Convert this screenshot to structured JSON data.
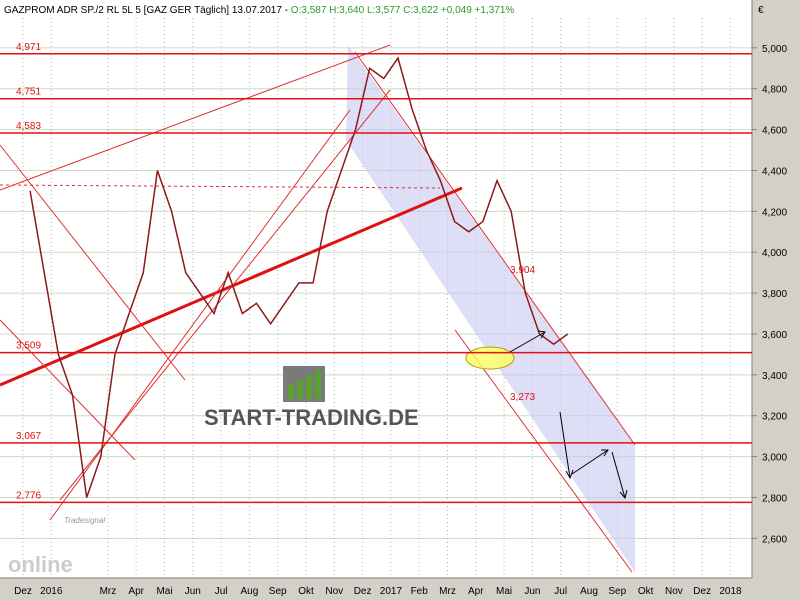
{
  "chart_data": {
    "type": "line",
    "title": "GAZPROM ADR SP./2 RL 5L 5 [GAZ GER  Täglich] 13.07.2017 -",
    "quote": "O:3,587 H:3,640 L:3,577 C:3,622 +0,049 +1,371%",
    "currency": "€",
    "categories": [
      "Dez",
      null,
      "2016",
      null,
      null,
      null,
      "Mrz",
      null,
      "Apr",
      null,
      "Mai",
      null,
      "Jun",
      null,
      "Jul",
      null,
      "Aug",
      null,
      "Sep",
      null,
      "Okt",
      null,
      "Nov",
      null,
      "Dez",
      null,
      "2017",
      null,
      "Feb",
      null,
      "Mrz",
      null,
      "Apr",
      null,
      "Mai",
      null,
      "Jun",
      null,
      "Jul",
      null,
      "Aug",
      null,
      "Sep",
      null,
      "Okt",
      null,
      "Nov",
      null,
      "Dez",
      null,
      "2018",
      null
    ],
    "series": [
      {
        "name": "GAZPROM ADR",
        "color": "#8b1a1a",
        "values": [
          4.3,
          3.9,
          3.5,
          3.3,
          2.8,
          3.0,
          3.5,
          3.7,
          3.9,
          4.4,
          4.2,
          3.9,
          3.8,
          3.7,
          3.9,
          3.7,
          3.75,
          3.65,
          3.75,
          3.85,
          3.85,
          4.2,
          4.4,
          4.6,
          4.9,
          4.85,
          4.95,
          4.7,
          4.5,
          4.35,
          4.15,
          4.1,
          4.15,
          4.35,
          4.2,
          3.8,
          3.6,
          3.55,
          3.6,
          null,
          null,
          null,
          null,
          null,
          null,
          null,
          null,
          null,
          null,
          null,
          null,
          null
        ]
      }
    ],
    "ylim": [
      2.406,
      5.234
    ],
    "yticks": [
      {
        "value": 2.6,
        "label": "2,600"
      },
      {
        "value": 2.8,
        "label": "2,800"
      },
      {
        "value": 3.0,
        "label": "3,000"
      },
      {
        "value": 3.2,
        "label": "3,200"
      },
      {
        "value": 3.4,
        "label": "3,400"
      },
      {
        "value": 3.6,
        "label": "3,600"
      },
      {
        "value": 3.8,
        "label": "3,800"
      },
      {
        "value": 4.0,
        "label": "4,000"
      },
      {
        "value": 4.2,
        "label": "4,200"
      },
      {
        "value": 4.4,
        "label": "4,400"
      },
      {
        "value": 4.6,
        "label": "4,600"
      },
      {
        "value": 4.8,
        "label": "4,800"
      },
      {
        "value": 5.0,
        "label": "5,000"
      }
    ],
    "grid": true,
    "levels": [
      {
        "value": 4.971,
        "label": "4,971"
      },
      {
        "value": 4.751,
        "label": "4,751"
      },
      {
        "value": 4.583,
        "label": "4,583"
      },
      {
        "value": 3.509,
        "label": "3,509"
      },
      {
        "value": 3.067,
        "label": "3,067"
      },
      {
        "value": 2.776,
        "label": "2,776"
      }
    ],
    "annotations": [
      "3,904",
      "3,273"
    ],
    "logo": "START-TRADING.DE",
    "watermark": [
      "online",
      "Tradesignal"
    ]
  }
}
